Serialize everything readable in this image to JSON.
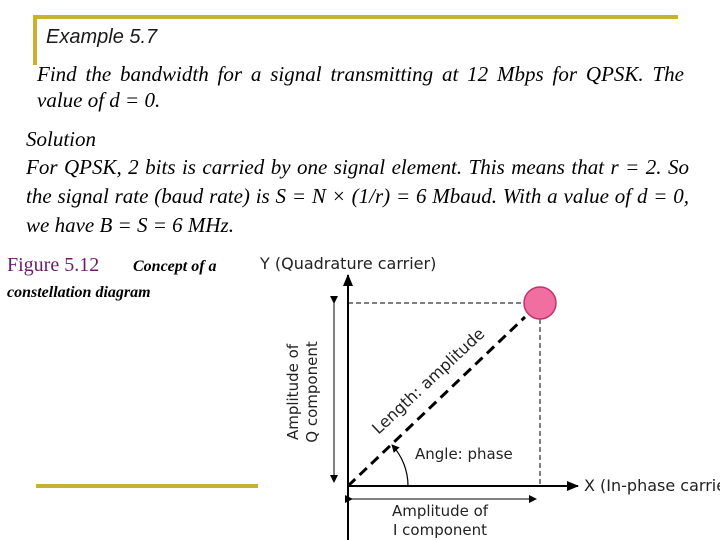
{
  "slide": {
    "example_title": "Example 5.7",
    "question": "Find the bandwidth for a signal transmitting at 12 Mbps for QPSK. The value of d = 0.",
    "solution_heading": "Solution",
    "solution_text": "For QPSK, 2 bits is carried by one signal element. This means that r = 2. So the signal rate (baud rate) is S = N × (1/r) = 6 Mbaud. With a value of d = 0, we have B = S = 6 MHz.",
    "figure_label": "Figure 5.12",
    "figure_caption_line1": "Concept of a",
    "figure_caption_line2": "constellation diagram"
  },
  "diagram": {
    "y_axis_label": "Y (Quadrature carrier)",
    "x_axis_label": "X (In-phase carrier)",
    "vertical_amplitude_line1": "Amplitude of",
    "vertical_amplitude_line2": "Q component",
    "horizontal_amplitude_line1": "Amplitude of",
    "horizontal_amplitude_line2": "I component",
    "length_label": "Length: amplitude",
    "angle_label": "Angle: phase",
    "colors": {
      "point": "#f06ea0",
      "point_stroke": "#c4326f",
      "frame": "#c8b12e"
    }
  }
}
